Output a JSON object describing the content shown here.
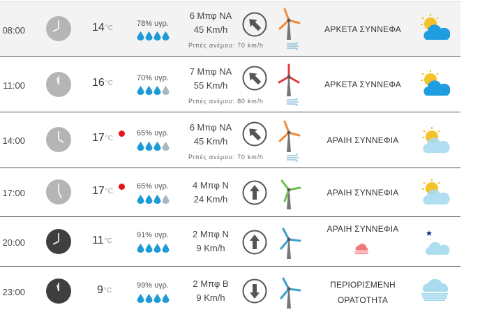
{
  "units": {
    "temp": "°C"
  },
  "rows": [
    {
      "time": "08:00",
      "temp": "14",
      "humidity": "78% υγρ.",
      "wind_bf": "6 Μπφ ΝΑ",
      "wind_speed": "45 Km/h",
      "gusts": "Ριπές ανέμου: 70 km/h",
      "condition": "ΑΡΚΕΤΑ ΣΥΝΝΕΦΑ",
      "drops_filled": 4,
      "direction": "NA",
      "windmill_color": "#ef8a3a",
      "icon": "partly-cloudy-icon"
    },
    {
      "time": "11:00",
      "temp": "16",
      "humidity": "70% υγρ.",
      "wind_bf": "7 Μπφ ΝΑ",
      "wind_speed": "55 Km/h",
      "gusts": "Ριπές ανέμου: 80 km/h",
      "condition": "ΑΡΚΕΤΑ ΣΥΝΝΕΦΑ",
      "drops_filled": 3,
      "direction": "NA",
      "windmill_color": "#e03a3a",
      "icon": "partly-cloudy-icon"
    },
    {
      "time": "14:00",
      "temp": "17",
      "humidity": "65% υγρ.",
      "wind_bf": "6 Μπφ ΝΑ",
      "wind_speed": "45 Km/h",
      "gusts": "Ριπές ανέμου: 70 km/h",
      "condition": "ΑΡΑΙΗ ΣΥΝΝΕΦΙΑ",
      "drops_filled": 3,
      "direction": "NA",
      "windmill_color": "#ef8a3a",
      "icon": "few-clouds-icon"
    },
    {
      "time": "17:00",
      "temp": "17",
      "humidity": "65% υγρ.",
      "wind_bf": "4 Μπφ Ν",
      "wind_speed": "24 Km/h",
      "gusts": "",
      "condition": "ΑΡΑΙΗ ΣΥΝΝΕΦΙΑ",
      "drops_filled": 3,
      "direction": "N",
      "windmill_color": "#6cc04a",
      "icon": "few-clouds-icon"
    },
    {
      "time": "20:00",
      "temp": "11",
      "humidity": "91% υγρ.",
      "wind_bf": "2 Μπφ Ν",
      "wind_speed": "9 Km/h",
      "gusts": "",
      "condition": "ΑΡΑΙΗ ΣΥΝΝΕΦΙΑ",
      "drops_filled": 4,
      "direction": "N",
      "windmill_color": "#3aa0d0",
      "icon": "night-few-clouds-icon"
    },
    {
      "time": "23:00",
      "temp": "9",
      "humidity": "99% υγρ.",
      "wind_bf": "2 Μπφ Β",
      "wind_speed": "9 Km/h",
      "gusts": "",
      "condition": "ΠΕΡΙΟΡΙΣΜΕΝΗ ΟΡΑΤΟΤΗΤΑ",
      "drops_filled": 4,
      "direction": "B",
      "windmill_color": "#3aa0d0",
      "icon": "fog-icon"
    }
  ]
}
